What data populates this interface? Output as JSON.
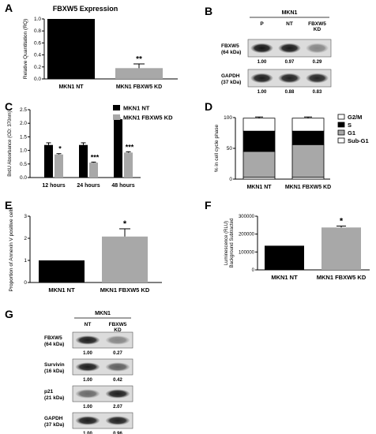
{
  "figure": {
    "panel_letters": [
      "A",
      "B",
      "C",
      "D",
      "E",
      "F",
      "G"
    ]
  },
  "chart_data": [
    {
      "id": "A",
      "type": "bar",
      "title": "FBXW5 Expression",
      "ylabel": "Relative Quantitation (RQ)",
      "categories": [
        "MKN1 NT",
        "MKN1 FBXW5 KD"
      ],
      "values": [
        1.0,
        0.18
      ],
      "errors": [
        0,
        0.07
      ],
      "ylim": [
        0,
        1.0
      ],
      "yticks": [
        "0.0",
        "0.2",
        "0.4",
        "0.6",
        "0.8",
        "1.0"
      ],
      "annotations": [
        "",
        "**"
      ],
      "colors": [
        "#000000",
        "#a8a8a8"
      ]
    },
    {
      "id": "C",
      "type": "bar",
      "ylabel": "BrdU Absorbance (OD: 370nm)",
      "categories": [
        "12 hours",
        "24 hours",
        "48 hours"
      ],
      "series": [
        {
          "name": "MKN1 NT",
          "values": [
            1.2,
            1.2,
            2.15
          ],
          "errors": [
            0.08,
            0.08,
            0.04
          ],
          "color": "#000000"
        },
        {
          "name": "MKN1 FBXW5 KD",
          "values": [
            0.85,
            0.55,
            0.92
          ],
          "errors": [
            0.03,
            0.02,
            0.03
          ],
          "color": "#a8a8a8"
        }
      ],
      "annotations": [
        "*",
        "***",
        "***"
      ],
      "ylim": [
        0,
        2.5
      ],
      "yticks": [
        "0.0",
        "0.5",
        "1.0",
        "1.5",
        "2.0",
        "2.5"
      ],
      "legend": "top-right"
    },
    {
      "id": "D",
      "type": "bar",
      "stacked": true,
      "ylabel": "% in cell cycle phase",
      "categories": [
        "MKN1 NT",
        "MKN1 FBXW5 KD"
      ],
      "series": [
        {
          "name": "Sub-G1",
          "values": [
            3,
            3
          ],
          "color": "#ffffff"
        },
        {
          "name": "G1",
          "values": [
            42,
            53
          ],
          "color": "#a8a8a8"
        },
        {
          "name": "S",
          "values": [
            33,
            22
          ],
          "color": "#000000"
        },
        {
          "name": "G2/M",
          "values": [
            21,
            21
          ],
          "color": "#ffffff"
        }
      ],
      "legend_order": [
        "G2/M",
        "S",
        "G1",
        "Sub-G1"
      ],
      "ylim": [
        0,
        100
      ],
      "yticks": [
        "0",
        "50",
        "100"
      ],
      "legend": "top-right"
    },
    {
      "id": "E",
      "type": "bar",
      "ylabel": "Proportion of Annexin V positive cells",
      "categories": [
        "MKN1 NT",
        "MKN1 FBXW5 KD"
      ],
      "values": [
        1.0,
        2.08
      ],
      "errors": [
        0,
        0.35
      ],
      "ylim": [
        0,
        3
      ],
      "yticks": [
        "0",
        "1",
        "2",
        "3"
      ],
      "annotations": [
        "",
        "*"
      ],
      "colors": [
        "#000000",
        "#a8a8a8"
      ]
    },
    {
      "id": "F",
      "type": "bar",
      "ylabel": "Luminescence (RLU) Background Subtracted",
      "categories": [
        "MKN1 NT",
        "MKN1 FBXW5 KD"
      ],
      "values": [
        135000,
        237000
      ],
      "errors": [
        0,
        8000
      ],
      "ylim": [
        0,
        300000
      ],
      "yticks": [
        "0",
        "100000",
        "200000",
        "300000"
      ],
      "annotations": [
        "",
        "*"
      ],
      "colors": [
        "#000000",
        "#a8a8a8"
      ]
    }
  ],
  "blots": {
    "B": {
      "header": "MKN1",
      "lanes": [
        "P",
        "NT",
        "FBXW5\nKD"
      ],
      "rows": [
        {
          "name": "FBXW5",
          "size": "(64 kDa)",
          "quant": [
            "1.00",
            "0.97",
            "0.29"
          ],
          "intensity": [
            0.95,
            0.92,
            0.35
          ]
        },
        {
          "name": "GAPDH",
          "size": "(37 kDa)",
          "quant": [
            "1.00",
            "0.88",
            "0.83"
          ],
          "intensity": [
            0.9,
            0.88,
            0.86
          ]
        }
      ]
    },
    "G": {
      "header": "MKN1",
      "lanes": [
        "NT",
        "FBXW5\nKD"
      ],
      "rows": [
        {
          "name": "FBXW5",
          "size": "(64 kDa)",
          "quant": [
            "1.00",
            "0.27"
          ],
          "intensity": [
            0.9,
            0.35
          ]
        },
        {
          "name": "Survivin",
          "size": "(16 kDa)",
          "quant": [
            "1.00",
            "0.42"
          ],
          "intensity": [
            0.9,
            0.55
          ]
        },
        {
          "name": "p21",
          "size": "(21 kDa)",
          "quant": [
            "1.00",
            "2.07"
          ],
          "intensity": [
            0.5,
            0.9
          ]
        },
        {
          "name": "GAPDH",
          "size": "(37 kDa)",
          "quant": [
            "1.00",
            "0.96"
          ],
          "intensity": [
            0.9,
            0.88
          ]
        }
      ]
    }
  }
}
